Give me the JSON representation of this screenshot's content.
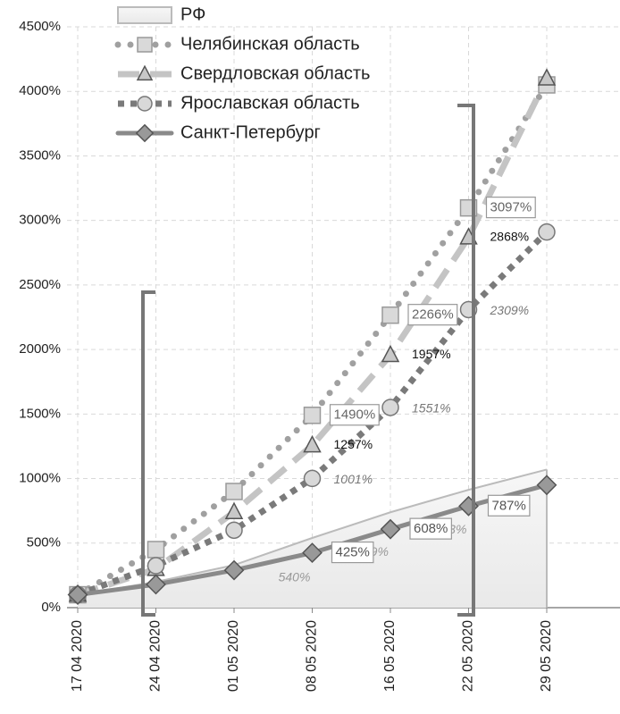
{
  "chart_data": {
    "type": "line",
    "categories": [
      "17 04 2020",
      "24 04 2020",
      "01 05 2020",
      "08 05 2020",
      "16 05 2020",
      "22 05 2020",
      "29 05 2020"
    ],
    "series": [
      {
        "name": "РФ",
        "style": "area",
        "color": "#bbbbbb",
        "values": [
          100,
          200,
          330,
          540,
          739,
          913,
          1070
        ],
        "value_labels": [
          null,
          null,
          null,
          "540%",
          "739%",
          "913%",
          null
        ]
      },
      {
        "name": "Челябинская область",
        "style": "round-dot",
        "marker": "square",
        "color": "#a0a0a0",
        "values": [
          100,
          450,
          900,
          1490,
          2266,
          3097,
          4050
        ],
        "value_labels": [
          null,
          null,
          null,
          "1490%",
          "2266%",
          "3097%",
          null
        ]
      },
      {
        "name": "Свердловская область",
        "style": "dash",
        "marker": "triangle",
        "color": "#c4c4c4",
        "values": [
          100,
          300,
          740,
          1257,
          1957,
          2868,
          4100
        ],
        "value_labels": [
          null,
          null,
          null,
          "1257%",
          "1957%",
          "2868%",
          null
        ]
      },
      {
        "name": "Ярославская область",
        "style": "square-dot",
        "marker": "circle",
        "color": "#7a7a7a",
        "values": [
          100,
          325,
          600,
          1001,
          1551,
          2309,
          2910
        ],
        "value_labels": [
          null,
          null,
          null,
          "1001%",
          "1551%",
          "2309%",
          null
        ]
      },
      {
        "name": "Санкт-Петербург",
        "style": "solid",
        "marker": "diamond",
        "color": "#8a8a8a",
        "values": [
          100,
          180,
          290,
          425,
          608,
          787,
          950
        ],
        "value_labels": [
          null,
          null,
          null,
          "425%",
          "608%",
          "787%",
          null
        ]
      }
    ],
    "ylim": [
      0,
      4500
    ],
    "yticks": [
      {
        "value": 0,
        "label": "0%"
      },
      {
        "value": 500,
        "label": "500%"
      },
      {
        "value": 1000,
        "label": "1000%"
      },
      {
        "value": 1500,
        "label": "1500%"
      },
      {
        "value": 2000,
        "label": "2000%"
      },
      {
        "value": 2500,
        "label": "2500%"
      },
      {
        "value": 3000,
        "label": "3000%"
      },
      {
        "value": 3500,
        "label": "3500%"
      },
      {
        "value": 4000,
        "label": "4000%"
      },
      {
        "value": 4500,
        "label": "4500%"
      }
    ],
    "grid": true,
    "legend": "top"
  }
}
